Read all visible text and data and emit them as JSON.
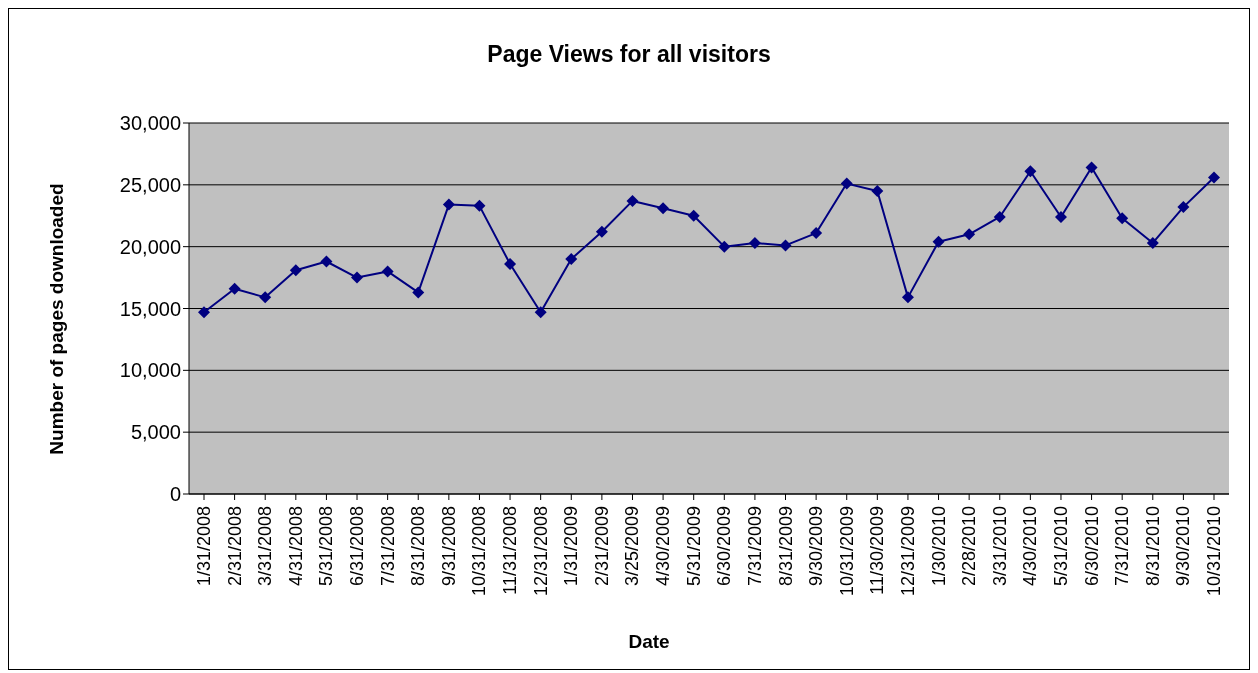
{
  "chart_data": {
    "type": "line",
    "title": "Page Views for all visitors",
    "xlabel": "Date",
    "ylabel": "Number of pages downloaded",
    "categories": [
      "1/31/2008",
      "2/31/2008",
      "3/31/2008",
      "4/31/2008",
      "5/31/2008",
      "6/31/2008",
      "7/31/2008",
      "8/31/2008",
      "9/31/2008",
      "10/31/2008",
      "11/31/2008",
      "12/31/2008",
      "1/31/2009",
      "2/31/2009",
      "3/25/2009",
      "4/30/2009",
      "5/31/2009",
      "6/30/2009",
      "7/31/2009",
      "8/31/2009",
      "9/30/2009",
      "10/31/2009",
      "11/30/2009",
      "12/31/2009",
      "1/30/2010",
      "2/28/2010",
      "3/31/2010",
      "4/30/2010",
      "5/31/2010",
      "6/30/2010",
      "7/31/2010",
      "8/31/2010",
      "9/30/2010",
      "10/31/2010"
    ],
    "series": [
      {
        "color": "#000080",
        "values": [
          14700,
          16600,
          15900,
          18100,
          18800,
          17500,
          18000,
          16300,
          23400,
          23300,
          18600,
          14700,
          19000,
          21200,
          23700,
          23100,
          22500,
          20000,
          20300,
          20100,
          21100,
          25100,
          24500,
          15900,
          20400,
          21000,
          22400,
          26100,
          22400,
          26400,
          22300,
          20300,
          23200,
          25600
        ]
      }
    ],
    "ylim": [
      0,
      30000
    ],
    "yticks": [
      {
        "value": 0,
        "label": "0"
      },
      {
        "value": 5000,
        "label": "5,000"
      },
      {
        "value": 10000,
        "label": "10,000"
      },
      {
        "value": 15000,
        "label": "15,000"
      },
      {
        "value": 20000,
        "label": "20,000"
      },
      {
        "value": 25000,
        "label": "25,000"
      },
      {
        "value": 30000,
        "label": "30,000"
      }
    ],
    "grid": "y",
    "legend": false,
    "marker": "diamond",
    "line_style": "solid"
  }
}
